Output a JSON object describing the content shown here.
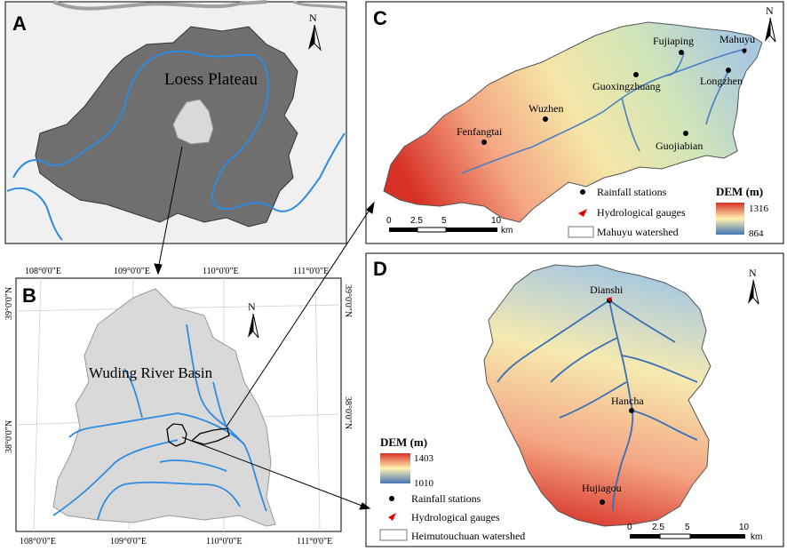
{
  "panels": {
    "A": {
      "letter": "A",
      "region_label": "Loess Plateau",
      "north": "N"
    },
    "B": {
      "letter": "B",
      "basin_label": "Wuding River Basin",
      "north": "N",
      "lon_labels": [
        "108°0'0\"E",
        "109°0'0\"E",
        "110°0'0\"E",
        "111°0'0\"E"
      ],
      "lat_labels": [
        "39°0'0\"N",
        "38°0'0\"N"
      ]
    },
    "C": {
      "letter": "C",
      "north": "N",
      "stations": [
        "Fujiaping",
        "Mahuyu",
        "Guoxingzhuang",
        "Longzhen",
        "Wuzhen",
        "Fenfangtai",
        "Guojiabian"
      ],
      "legend": {
        "rainfall": "Rainfall stations",
        "gauges": "Hydrological gauges",
        "watershed": "Mahuyu watershed",
        "dem_title": "DEM (m)",
        "dem_max": "1316",
        "dem_min": "864"
      },
      "scale": {
        "ticks": [
          "0",
          "2.5",
          "5",
          "10"
        ],
        "unit": "km"
      }
    },
    "D": {
      "letter": "D",
      "north": "N",
      "stations": [
        "Dianshi",
        "Hancha",
        "Hujiagou"
      ],
      "legend": {
        "dem_title": "DEM (m)",
        "dem_max": "1403",
        "dem_min": "1010",
        "rainfall": "Rainfall stations",
        "gauges": "Hydrological gauges",
        "watershed": "Heimutouchuan watershed"
      },
      "scale": {
        "ticks": [
          "0",
          "2.5",
          "5",
          "10"
        ],
        "unit": "km"
      }
    }
  },
  "colors": {
    "plateau": "#6f6f6f",
    "basin": "#d9d9d9",
    "river": "#2e8be0",
    "dem_high": "#d7301f",
    "dem_mid": "#fff2b0",
    "dem_low": "#2166ac"
  }
}
